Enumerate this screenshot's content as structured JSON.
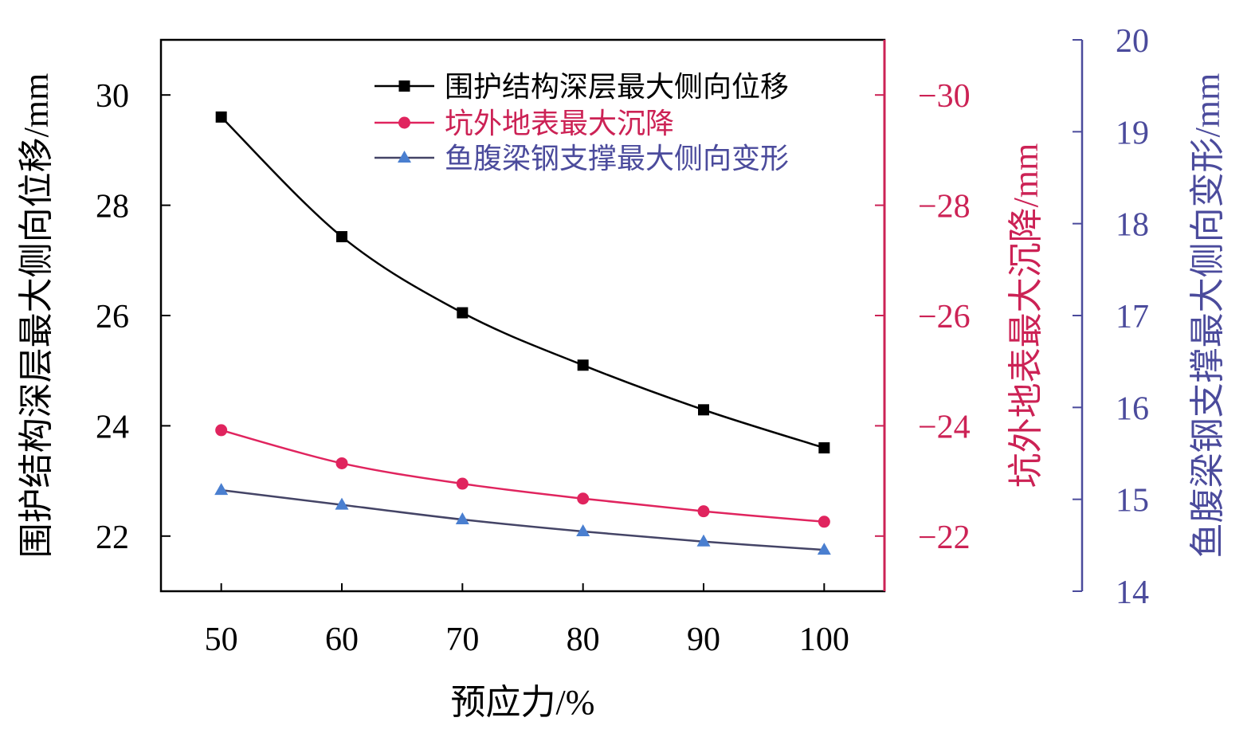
{
  "chart_data": {
    "type": "line",
    "xlabel": "预应力/%",
    "x": [
      50,
      60,
      70,
      80,
      90,
      100
    ],
    "xlim": [
      45,
      105
    ],
    "x_ticks": [
      "50",
      "60",
      "70",
      "80",
      "90",
      "100"
    ],
    "grid": false,
    "legend_position": "top-right",
    "axes": [
      {
        "id": "left",
        "label": "围护结构深层最大侧向位移/mm",
        "color": "#000000",
        "range": [
          21,
          31
        ],
        "ticks": [
          30,
          28,
          26,
          24,
          22
        ],
        "tick_labels": [
          "30",
          "28",
          "26",
          "24",
          "22"
        ]
      },
      {
        "id": "right1",
        "label": "坑外地表最大沉降/mm",
        "color": "#cc2255",
        "range": [
          -21,
          -31
        ],
        "ticks": [
          -30,
          -28,
          -26,
          -24,
          -22
        ],
        "tick_labels": [
          "−30",
          "−28",
          "−26",
          "−24",
          "−22"
        ]
      },
      {
        "id": "right2",
        "label": "鱼腹梁钢支撑最大侧向变形/mm",
        "color": "#4b4b9c",
        "range": [
          14,
          20
        ],
        "ticks": [
          20,
          19,
          18,
          17,
          16,
          15,
          14
        ],
        "tick_labels": [
          "20",
          "19",
          "18",
          "17",
          "16",
          "15",
          "14"
        ]
      }
    ],
    "series": [
      {
        "name": "围护结构深层最大侧向位移",
        "axis": "left",
        "marker": "square",
        "color": "#000000",
        "values": [
          29.6,
          27.43,
          26.05,
          25.1,
          24.29,
          23.6
        ]
      },
      {
        "name": "坑外地表最大沉降",
        "axis": "right1",
        "marker": "circle",
        "color": "#e0245e",
        "values": [
          -23.92,
          -23.32,
          -22.95,
          -22.68,
          -22.45,
          -22.26
        ]
      },
      {
        "name": "鱼腹梁钢支撑最大侧向变形",
        "axis": "right2",
        "marker": "triangle",
        "color": "#4a7fd0",
        "values": [
          15.1,
          14.94,
          14.78,
          14.65,
          14.54,
          14.45
        ]
      }
    ]
  }
}
